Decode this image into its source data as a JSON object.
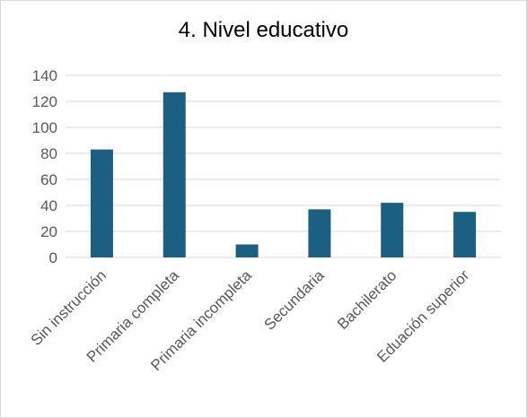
{
  "chart_data": {
    "type": "bar",
    "title": "4. Nivel educativo",
    "xlabel": "",
    "ylabel": "",
    "categories": [
      "Sin instrucción",
      "Primaria completa",
      "Primaria incompleta",
      "Secundaria",
      "Bachilerato",
      "Eduación superior"
    ],
    "values": [
      83,
      127,
      10,
      37,
      42,
      35
    ],
    "ylim": [
      0,
      140
    ],
    "yticks": [
      0,
      20,
      40,
      60,
      80,
      100,
      120,
      140
    ],
    "bar_color": "#1b5f82",
    "grid": true,
    "legend": "none"
  }
}
